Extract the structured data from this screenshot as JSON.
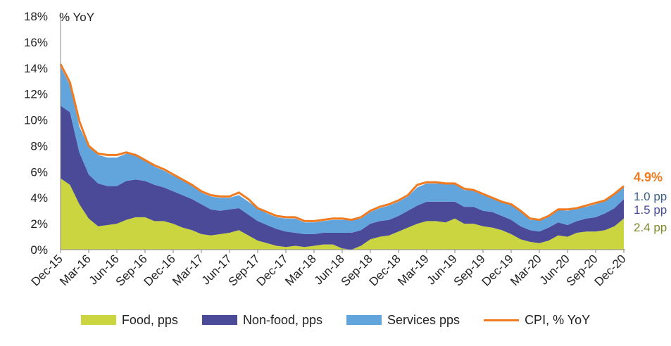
{
  "chart_data": {
    "type": "area",
    "stacked": true,
    "unit_label": "% YoY",
    "ylim": [
      0,
      18
    ],
    "y_ticks": [
      "0%",
      "2%",
      "4%",
      "6%",
      "8%",
      "10%",
      "12%",
      "14%",
      "16%",
      "18%"
    ],
    "x_tick_labels": [
      "Dec-15",
      "Mar-16",
      "Jun-16",
      "Sep-16",
      "Dec-16",
      "Mar-17",
      "Jun-17",
      "Sep-17",
      "Dec-17",
      "Mar-18",
      "Jun-18",
      "Sep-18",
      "Dec-18",
      "Mar-19",
      "Jun-19",
      "Sep-19",
      "Dec-19",
      "Mar-20",
      "Jun-20",
      "Sep-20",
      "Dec-20"
    ],
    "x_tick_every": 3,
    "grid": false,
    "legend_position": "bottom",
    "series": [
      {
        "name": "Food, pps",
        "kind": "area",
        "color": "#cbd53f",
        "values": [
          5.5,
          5.0,
          3.5,
          2.4,
          1.8,
          1.9,
          2.0,
          2.3,
          2.5,
          2.5,
          2.2,
          2.2,
          2.0,
          1.7,
          1.5,
          1.2,
          1.1,
          1.2,
          1.3,
          1.5,
          1.1,
          0.7,
          0.5,
          0.3,
          0.2,
          0.3,
          0.2,
          0.3,
          0.4,
          0.4,
          0.1,
          0.0,
          0.3,
          0.8,
          1.0,
          1.1,
          1.4,
          1.7,
          2.0,
          2.2,
          2.2,
          2.1,
          2.4,
          2.0,
          2.0,
          1.8,
          1.7,
          1.5,
          1.2,
          0.8,
          0.6,
          0.5,
          0.7,
          1.1,
          1.0,
          1.3,
          1.4,
          1.4,
          1.5,
          1.8,
          2.4
        ]
      },
      {
        "name": "Non-food, pps",
        "kind": "area",
        "color": "#4a4a99",
        "values": [
          5.6,
          5.6,
          4.0,
          3.4,
          3.3,
          3.0,
          2.9,
          3.0,
          2.9,
          2.8,
          2.8,
          2.6,
          2.5,
          2.5,
          2.4,
          2.3,
          2.0,
          1.8,
          1.8,
          1.7,
          1.6,
          1.5,
          1.4,
          1.3,
          1.2,
          1.0,
          1.0,
          0.9,
          0.9,
          0.9,
          1.2,
          1.3,
          1.2,
          1.2,
          1.2,
          1.2,
          1.2,
          1.3,
          1.4,
          1.5,
          1.5,
          1.6,
          1.3,
          1.3,
          1.3,
          1.2,
          1.2,
          1.1,
          1.1,
          1.0,
          0.9,
          0.9,
          1.0,
          1.0,
          0.9,
          0.9,
          1.0,
          1.1,
          1.3,
          1.4,
          1.5
        ]
      },
      {
        "name": "Services pps",
        "kind": "area",
        "color": "#62a5dd",
        "values": [
          3.0,
          2.1,
          2.0,
          2.1,
          2.2,
          2.2,
          2.2,
          2.1,
          2.0,
          1.7,
          1.4,
          1.3,
          1.2,
          1.2,
          1.1,
          0.9,
          1.0,
          1.0,
          0.9,
          1.0,
          1.0,
          1.0,
          0.9,
          0.9,
          1.0,
          1.1,
          0.9,
          0.9,
          0.9,
          1.0,
          1.0,
          1.0,
          0.9,
          0.9,
          1.0,
          1.1,
          1.1,
          1.1,
          1.4,
          1.4,
          1.4,
          1.4,
          1.4,
          1.3,
          1.3,
          1.2,
          1.1,
          1.1,
          1.2,
          1.2,
          0.8,
          0.9,
          0.9,
          1.0,
          1.1,
          1.0,
          0.9,
          1.0,
          1.0,
          1.1,
          1.0
        ]
      },
      {
        "name": "CPI, % YoY",
        "kind": "line",
        "color": "#f07a1f",
        "values": [
          14.3,
          12.9,
          9.9,
          8.0,
          7.4,
          7.3,
          7.3,
          7.5,
          7.3,
          6.9,
          6.5,
          6.2,
          5.8,
          5.4,
          5.0,
          4.5,
          4.2,
          4.1,
          4.1,
          4.4,
          3.9,
          3.2,
          2.9,
          2.6,
          2.5,
          2.5,
          2.2,
          2.2,
          2.3,
          2.4,
          2.4,
          2.3,
          2.5,
          3.0,
          3.3,
          3.5,
          3.8,
          4.2,
          5.0,
          5.2,
          5.2,
          5.1,
          5.1,
          4.7,
          4.6,
          4.3,
          4.0,
          3.7,
          3.5,
          3.0,
          2.4,
          2.3,
          2.6,
          3.1,
          3.1,
          3.2,
          3.4,
          3.6,
          3.8,
          4.3,
          4.9
        ]
      }
    ],
    "end_labels": [
      {
        "text": "4.9%",
        "color": "#f07a1f"
      },
      {
        "text": "1.0 pp",
        "color": "#3b5f8a"
      },
      {
        "text": "1.5 pp",
        "color": "#4a4a99"
      },
      {
        "text": "2.4 pp",
        "color": "#7a8a2a"
      }
    ]
  }
}
